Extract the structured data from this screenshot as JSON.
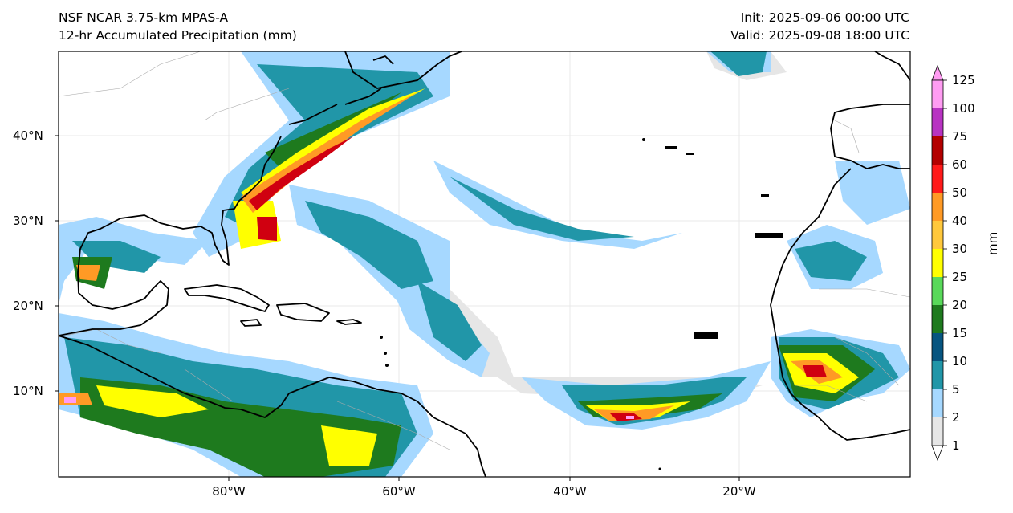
{
  "header": {
    "title_left_1": "NSF NCAR 3.75-km MPAS-A",
    "title_left_2": "12-hr Accumulated Precipitation (mm)",
    "title_right_1": "Init: 2025-09-06 00:00 UTC",
    "title_right_2": "Valid: 2025-09-08 18:00 UTC"
  },
  "map": {
    "lon_labels": [
      "80°W",
      "60°W",
      "40°W",
      "20°W"
    ],
    "lat_labels": [
      "40°N",
      "30°N",
      "20°N",
      "10°N"
    ]
  },
  "colorbar": {
    "unit": "mm",
    "levels": [
      "1",
      "2",
      "5",
      "10",
      "15",
      "20",
      "25",
      "30",
      "40",
      "50",
      "60",
      "75",
      "100",
      "125"
    ],
    "colors": [
      "#e6e6e6",
      "#a6d8ff",
      "#2196a8",
      "#075580",
      "#1e7a1e",
      "#59d95a",
      "#ffff00",
      "#ffc83c",
      "#ff9a25",
      "#ff1a1a",
      "#b30000",
      "#b833c2",
      "#ff9cf2"
    ]
  }
}
